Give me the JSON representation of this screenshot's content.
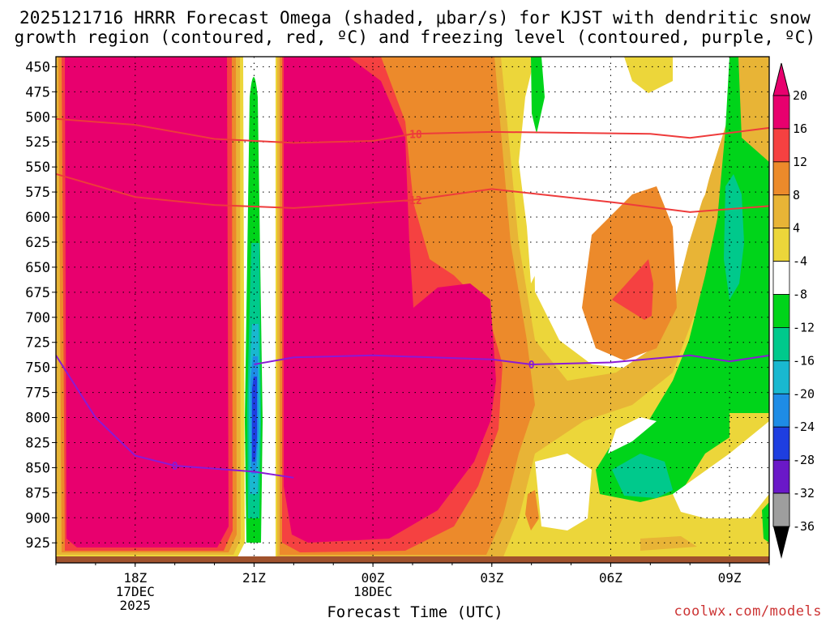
{
  "title_line1": "2025121716 HRRR Forecast Omega (shaded, μbar/s) for KJST with dendritic snow",
  "title_line2": "growth region (contoured, red, ºC) and freezing level (contoured, purple, ºC)",
  "xlabel": "Forecast Time (UTC)",
  "credit": "coolwx.com/models",
  "chart_data": {
    "type": "heatmap",
    "title": "2025121716 HRRR Forecast Omega (shaded, μbar/s) for KJST with dendritic snow growth region (contoured, red, ºC) and freezing level (contoured, purple, ºC)",
    "xlabel": "Forecast Time (UTC)",
    "ylabel": "",
    "y_axis": {
      "ticks": [
        450,
        475,
        500,
        525,
        550,
        575,
        600,
        625,
        650,
        675,
        700,
        725,
        750,
        775,
        800,
        825,
        850,
        875,
        900,
        925
      ],
      "range_hPa": [
        440,
        945
      ],
      "inverted": true
    },
    "x_axis": {
      "range_hours_utc": [
        "2025-12-17 16Z",
        "2025-12-18 10Z"
      ],
      "ticks": [
        {
          "time": "2025-12-17 18Z",
          "lines": [
            "18Z",
            "17DEC",
            "2025"
          ]
        },
        {
          "time": "2025-12-17 21Z",
          "lines": [
            "21Z"
          ]
        },
        {
          "time": "2025-12-18 00Z",
          "lines": [
            "00Z",
            "18DEC"
          ]
        },
        {
          "time": "2025-12-18 03Z",
          "lines": [
            "03Z"
          ]
        },
        {
          "time": "2025-12-18 06Z",
          "lines": [
            "06Z"
          ]
        },
        {
          "time": "2025-12-18 09Z",
          "lines": [
            "09Z"
          ]
        }
      ]
    },
    "grid": true,
    "colorbar": {
      "labels": [
        "20",
        "16",
        "12",
        "8",
        "4",
        "-4",
        "-8",
        "-12",
        "-16",
        "-20",
        "-24",
        "-28",
        "-32",
        "-36"
      ],
      "colors": [
        "#e8006e",
        "#f54141",
        "#ec8a2b",
        "#e8b436",
        "#ecd63a",
        "#ffffff",
        "#00d41a",
        "#00c98c",
        "#19b8d0",
        "#1e8ce6",
        "#1e3ee0",
        "#6a18c8",
        "#9a0ac0",
        "#9e9e9e"
      ],
      "top_arrow_color": "#e8006e",
      "bottom_arrow_color": "#000000"
    },
    "contours": {
      "dgz_red": [
        {
          "label": "-18",
          "color": "#ee3b3b",
          "points": [
            [
              "2025-12-17 16Z",
              502
            ],
            [
              "2025-12-17 18Z",
              508
            ],
            [
              "2025-12-17 20Z",
              522
            ],
            [
              "2025-12-17 22Z",
              526
            ],
            [
              "2025-12-18 00Z",
              524
            ],
            [
              "2025-12-18 01Z",
              517
            ],
            [
              "2025-12-18 03Z",
              515
            ],
            [
              "2025-12-18 07Z",
              517
            ],
            [
              "2025-12-18 08Z",
              521
            ],
            [
              "2025-12-18 10Z",
              511
            ]
          ]
        },
        {
          "label": "-12",
          "color": "#ee3b3b",
          "points": [
            [
              "2025-12-17 16Z",
              557
            ],
            [
              "2025-12-17 18Z",
              580
            ],
            [
              "2025-12-17 20Z",
              588
            ],
            [
              "2025-12-17 22Z",
              591
            ],
            [
              "2025-12-18 01Z",
              583
            ],
            [
              "2025-12-18 03Z",
              572
            ],
            [
              "2025-12-18 06Z",
              585
            ],
            [
              "2025-12-18 08Z",
              595
            ],
            [
              "2025-12-18 10Z",
              589
            ]
          ]
        }
      ],
      "freezing_purple": [
        {
          "label": "0",
          "color": "#8a1ad6",
          "points": [
            [
              "2025-12-17 16Z",
              738
            ],
            [
              "2025-12-17 17Z",
              800
            ],
            [
              "2025-12-17 18Z",
              838
            ],
            [
              "2025-12-17 19Z",
              848
            ],
            [
              "2025-12-17 21Z",
              854
            ],
            [
              "2025-12-17 22Z",
              860
            ]
          ]
        },
        {
          "label": "0",
          "color": "#8a1ad6",
          "points": [
            [
              "2025-12-17 21Z",
              747
            ],
            [
              "2025-12-17 22Z",
              740
            ],
            [
              "2025-12-18 00Z",
              738
            ],
            [
              "2025-12-18 03Z",
              742
            ],
            [
              "2025-12-18 04Z",
              747
            ],
            [
              "2025-12-18 06Z",
              745
            ],
            [
              "2025-12-18 08Z",
              738
            ],
            [
              "2025-12-18 09Z",
              744
            ],
            [
              "2025-12-18 10Z",
              738
            ]
          ]
        }
      ]
    },
    "shaded_regions_description": []
  }
}
